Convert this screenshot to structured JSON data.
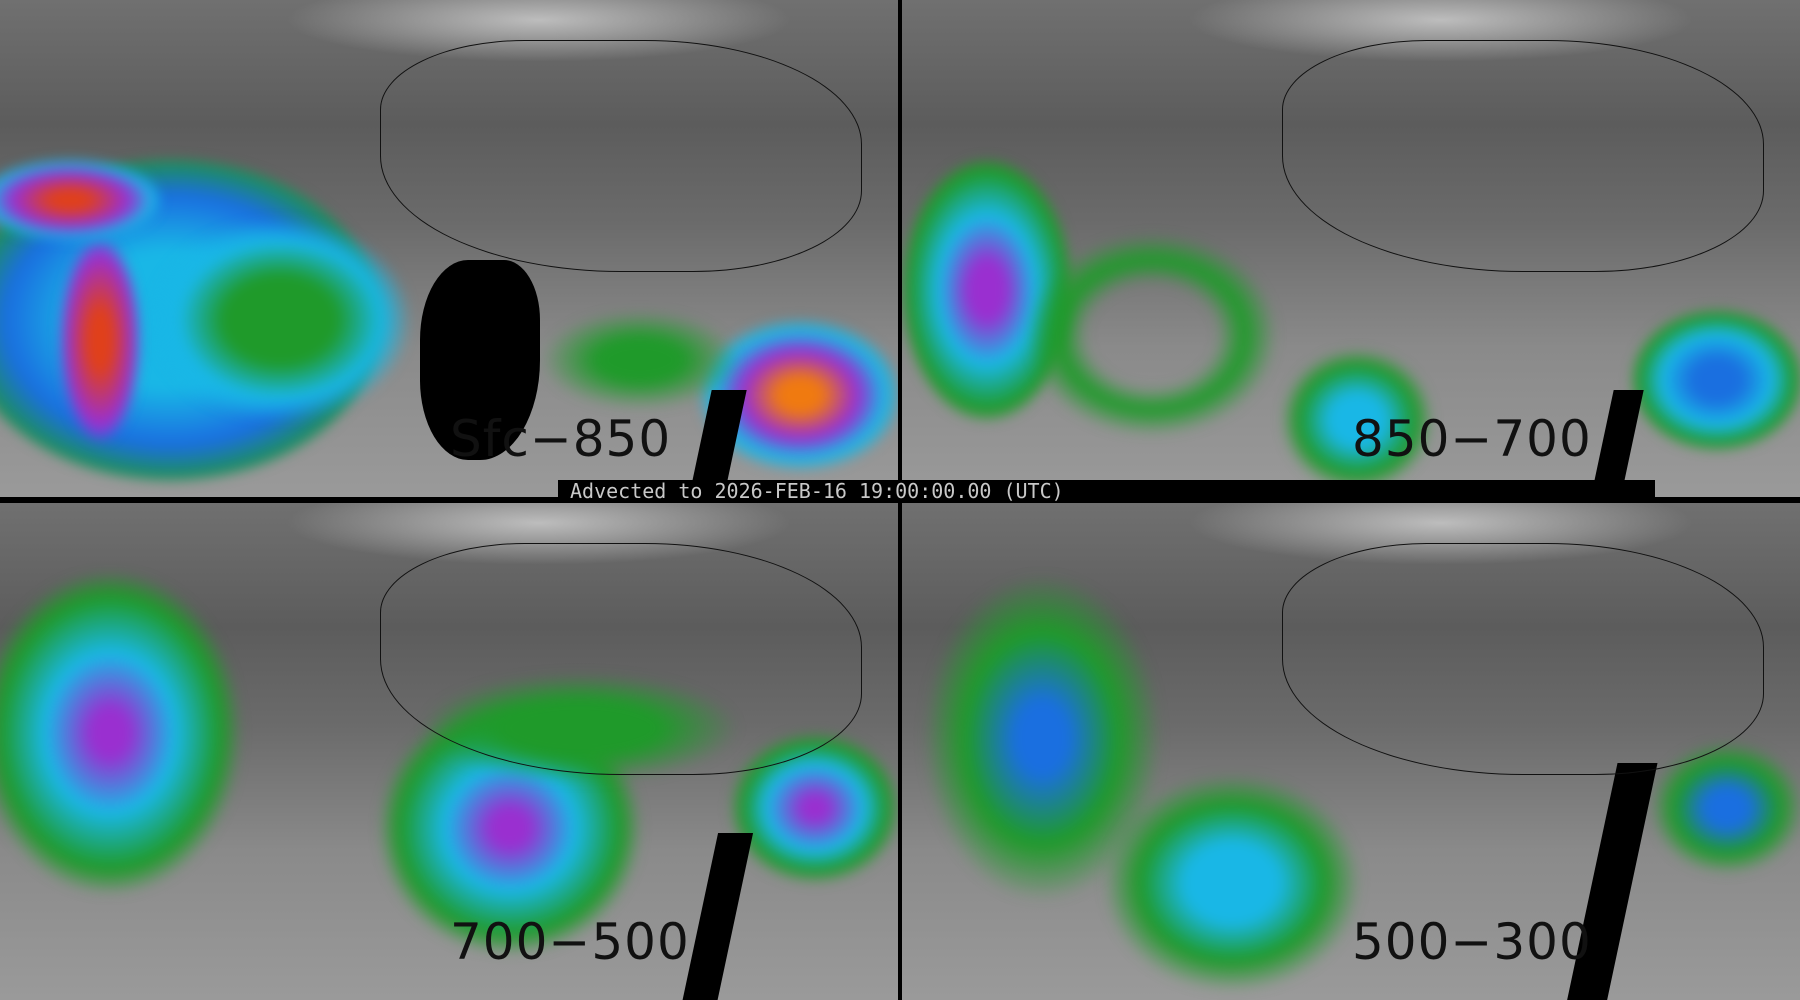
{
  "panels": [
    {
      "label": "Sfc−850"
    },
    {
      "label": "850−700"
    },
    {
      "label": "700−500"
    },
    {
      "label": "500−300"
    }
  ],
  "banner": "Advected to 2026-FEB-16 19:00:00.00 (UTC)",
  "colors": {
    "low": "#808080",
    "green": "#1f9a2a",
    "cyan": "#19b7e6",
    "blue": "#1a6fe0",
    "purple": "#9a2fd0",
    "red": "#e0401a",
    "orange": "#f07a10"
  }
}
